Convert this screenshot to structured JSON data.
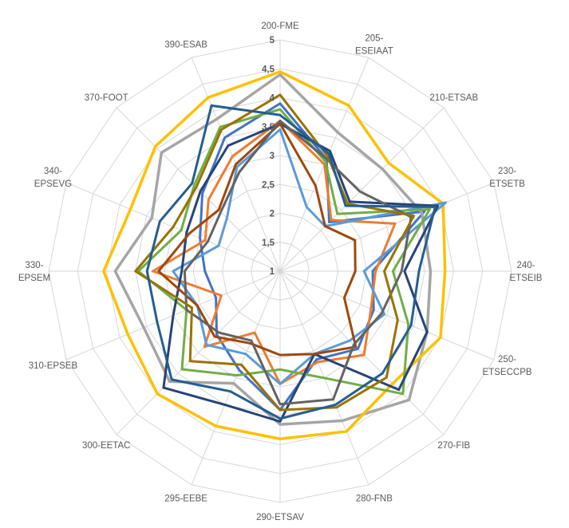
{
  "chart_data": {
    "type": "line",
    "subtype": "radar",
    "title": "",
    "grid": true,
    "legend_position": "none",
    "grid_color": "#D6D6D6",
    "label_color": "#595959",
    "radial_axis": {
      "min": 1,
      "max": 5,
      "step": 0.5,
      "tick_labels": [
        "1",
        "1,5",
        "2",
        "2,5",
        "3",
        "3,5",
        "4",
        "4,5",
        "5"
      ]
    },
    "categories": [
      {
        "label": "200-FME",
        "lines": [
          "200-FME"
        ]
      },
      {
        "label": "205-ESEIAAT",
        "lines": [
          "205-",
          "ESEIAAT"
        ]
      },
      {
        "label": "210-ETSAB",
        "lines": [
          "210-ETSAB"
        ]
      },
      {
        "label": "230-ETSETB",
        "lines": [
          "230-",
          "ETSETB"
        ]
      },
      {
        "label": "240-ETSEIB",
        "lines": [
          "240-",
          "ETSEIB"
        ]
      },
      {
        "label": "250-ETSECCPB",
        "lines": [
          "250-",
          "ETSECCPB"
        ]
      },
      {
        "label": "270-FIB",
        "lines": [
          "270-FIB"
        ]
      },
      {
        "label": "280-FNB",
        "lines": [
          "280-FNB"
        ]
      },
      {
        "label": "290-ETSAV",
        "lines": [
          "290-ETSAV"
        ]
      },
      {
        "label": "295-EEBE",
        "lines": [
          "295-EEBE"
        ]
      },
      {
        "label": "300-EETAC",
        "lines": [
          "300-EETAC"
        ]
      },
      {
        "label": "310-EPSEB",
        "lines": [
          "310-EPSEB"
        ]
      },
      {
        "label": "330-EPSEM",
        "lines": [
          "330-",
          "EPSEM"
        ]
      },
      {
        "label": "340-EPSEVG",
        "lines": [
          "340-",
          "EPSEVG"
        ]
      },
      {
        "label": "370-FOOT",
        "lines": [
          "370-FOOT"
        ]
      },
      {
        "label": "390-ESAB",
        "lines": [
          "390-ESAB"
        ]
      }
    ],
    "series": [
      {
        "id": "blue",
        "color": "#4472C4",
        "width": 3,
        "values": [
          3.9,
          3.1,
          2.2,
          3.7,
          2.6,
          2.75,
          2.9,
          2.65,
          3.4,
          2.85,
          2.55,
          2.2,
          2.3,
          2.5,
          2.9,
          3.5
        ]
      },
      {
        "id": "orange",
        "color": "#ED7D31",
        "width": 3,
        "values": [
          3.6,
          3.0,
          2.25,
          3.15,
          2.65,
          2.7,
          3.05,
          2.7,
          2.95,
          2.15,
          2.85,
          2.1,
          3.2,
          2.4,
          2.75,
          3.15
        ]
      },
      {
        "id": "gray",
        "color": "#A5A5A5",
        "width": 3.5,
        "values": [
          4.4,
          3.6,
          3.5,
          3.65,
          3.6,
          3.75,
          4.15,
          3.8,
          3.65,
          3.1,
          3.7,
          3.55,
          3.85,
          3.4,
          3.9,
          3.85
        ]
      },
      {
        "id": "gold",
        "color": "#FFC000",
        "width": 3.5,
        "values": [
          4.45,
          4.1,
          3.65,
          4.05,
          3.85,
          4.0,
          3.75,
          4.0,
          3.9,
          3.9,
          4.0,
          3.85,
          4.05,
          3.8,
          4.05,
          4.25
        ]
      },
      {
        "id": "light-blue",
        "color": "#5B9BD5",
        "width": 3,
        "values": [
          3.45,
          2.2,
          2.1,
          4.1,
          2.45,
          2.95,
          2.7,
          2.55,
          2.95,
          2.55,
          2.8,
          2.55,
          2.85,
          2.15,
          2.3,
          2.95
        ]
      },
      {
        "id": "green",
        "color": "#70AD47",
        "width": 3,
        "values": [
          3.8,
          3.05,
          2.4,
          3.8,
          2.95,
          3.4,
          4.0,
          3.0,
          2.7,
          2.95,
          3.4,
          2.75,
          3.45,
          2.85,
          3.1,
          3.7
        ]
      },
      {
        "id": "navy",
        "color": "#264478",
        "width": 3,
        "values": [
          3.55,
          3.25,
          2.7,
          3.95,
          3.15,
          3.75,
          3.9,
          2.55,
          3.6,
          3.5,
          3.85,
          3.0,
          2.7,
          2.75,
          2.95,
          3.35
        ]
      },
      {
        "id": "brown",
        "color": "#9E480E",
        "width": 3,
        "values": [
          3.55,
          2.6,
          2.1,
          2.4,
          2.3,
          2.2,
          2.85,
          2.55,
          2.45,
          2.35,
          2.6,
          2.55,
          3.1,
          2.7,
          2.5,
          3.0
        ]
      },
      {
        "id": "dark-gray",
        "color": "#636363",
        "width": 3,
        "values": [
          3.6,
          3.1,
          2.95,
          3.45,
          3.1,
          2.9,
          2.8,
          3.4,
          3.3,
          2.3,
          2.5,
          2.75,
          2.65,
          2.35,
          2.45,
          2.85
        ]
      },
      {
        "id": "olive",
        "color": "#997300",
        "width": 3,
        "values": [
          4.05,
          3.15,
          2.65,
          3.5,
          2.8,
          3.2,
          3.6,
          3.55,
          3.4,
          2.75,
          3.2,
          2.65,
          3.5,
          3.0,
          3.05,
          3.65
        ]
      },
      {
        "id": "steel-blue",
        "color": "#255E91",
        "width": 3,
        "values": [
          3.7,
          3.2,
          2.6,
          3.9,
          3.4,
          3.45,
          3.5,
          3.5,
          3.55,
          3.25,
          3.65,
          3.3,
          3.3,
          3.25,
          3.15,
          4.1
        ]
      }
    ]
  }
}
